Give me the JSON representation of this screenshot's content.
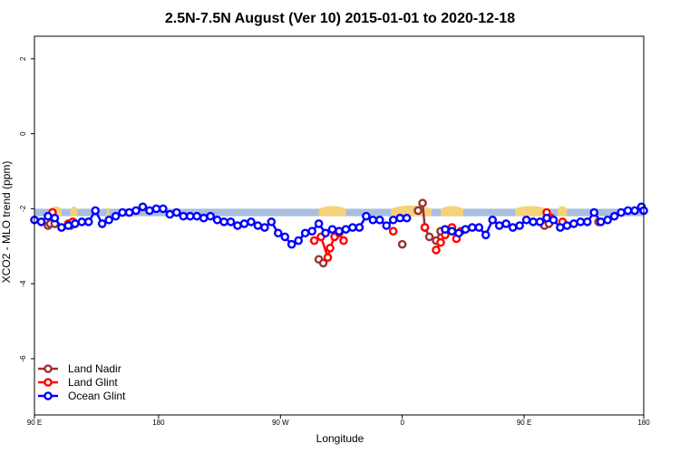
{
  "chart_data": {
    "type": "line",
    "title": "2.5N-7.5N August (Ver 10)   2015-01-01 to 2020-12-18",
    "xlabel": "Longitude",
    "ylabel": "XCO2 - MLO trend (ppm)",
    "xlim": [
      -90,
      180
    ],
    "ylim": [
      -7.5,
      2.6
    ],
    "x_ticks": [
      {
        "value": -90,
        "label": "90 E"
      },
      {
        "value": -35,
        "label": "180"
      },
      {
        "value": 19,
        "label": "90 W"
      },
      {
        "value": 73,
        "label": "0"
      },
      {
        "value": 127,
        "label": "90 E"
      },
      {
        "value": 180,
        "label": "180"
      }
    ],
    "y_ticks": [
      2,
      0,
      -2,
      -4,
      -6
    ],
    "band": {
      "ymin": -2.2,
      "ymax": -2.0,
      "color": "#a8bfdf",
      "land_color": "#f5d27a"
    },
    "land_bumps": [
      {
        "x0": -83,
        "x1": -78,
        "top": -1.95
      },
      {
        "x0": -74,
        "x1": -71,
        "top": -1.95
      },
      {
        "x0": -58,
        "x1": -57,
        "top": -2.0
      },
      {
        "x0": 36,
        "x1": 48,
        "top": -1.93
      },
      {
        "x0": 68,
        "x1": 86,
        "top": -1.9
      },
      {
        "x0": 90,
        "x1": 100,
        "top": -1.93
      },
      {
        "x0": 123,
        "x1": 137,
        "top": -1.93
      },
      {
        "x0": 142,
        "x1": 146,
        "top": -1.93
      }
    ],
    "series": [
      {
        "name": "Land Nadir",
        "color": "#993333",
        "segments": [
          [
            [
              -84,
              -2.45
            ],
            [
              -83,
              -2.4
            ],
            [
              -81,
              -2.4
            ]
          ],
          [
            [
              -74,
              -2.45
            ],
            [
              -73,
              -2.35
            ]
          ],
          [
            [
              36,
              -3.35
            ],
            [
              38,
              -3.45
            ]
          ],
          [
            [
              73,
              -2.95
            ]
          ],
          [
            [
              80,
              -2.05
            ],
            [
              82,
              -1.85
            ],
            [
              83,
              -2.5
            ],
            [
              85,
              -2.75
            ],
            [
              88,
              -2.85
            ],
            [
              90,
              -2.6
            ]
          ],
          [
            [
              136,
              -2.45
            ],
            [
              138,
              -2.4
            ]
          ],
          [
            [
              160,
              -2.35
            ]
          ]
        ]
      },
      {
        "name": "Land Glint",
        "color": "#ff0000",
        "segments": [
          [
            [
              -82,
              -2.1
            ]
          ],
          [
            [
              -75,
              -2.4
            ],
            [
              -73,
              -2.35
            ]
          ],
          [
            [
              34,
              -2.85
            ],
            [
              37,
              -2.75
            ],
            [
              40,
              -3.3
            ],
            [
              41,
              -3.05
            ],
            [
              43,
              -2.75
            ],
            [
              45,
              -2.65
            ],
            [
              47,
              -2.85
            ]
          ],
          [
            [
              69,
              -2.6
            ]
          ],
          [
            [
              83,
              -2.5
            ]
          ],
          [
            [
              88,
              -3.1
            ],
            [
              90,
              -2.9
            ],
            [
              92,
              -2.7
            ],
            [
              95,
              -2.5
            ],
            [
              97,
              -2.8
            ],
            [
              99,
              -2.6
            ]
          ],
          [
            [
              137,
              -2.1
            ],
            [
              139,
              -2.25
            ]
          ],
          [
            [
              144,
              -2.35
            ]
          ]
        ]
      },
      {
        "name": "Ocean Glint",
        "color": "#0000ff",
        "segments": [
          [
            [
              -90,
              -2.3
            ],
            [
              -87,
              -2.35
            ],
            [
              -84,
              -2.2
            ],
            [
              -81,
              -2.25
            ],
            [
              -78,
              -2.5
            ],
            [
              -75,
              -2.45
            ],
            [
              -72,
              -2.4
            ],
            [
              -69,
              -2.35
            ],
            [
              -66,
              -2.35
            ],
            [
              -63,
              -2.05
            ],
            [
              -60,
              -2.4
            ],
            [
              -57,
              -2.3
            ],
            [
              -54,
              -2.2
            ],
            [
              -51,
              -2.1
            ],
            [
              -48,
              -2.1
            ],
            [
              -45,
              -2.05
            ],
            [
              -42,
              -1.95
            ],
            [
              -39,
              -2.05
            ],
            [
              -36,
              -2.0
            ],
            [
              -33,
              -2.0
            ],
            [
              -30,
              -2.15
            ],
            [
              -27,
              -2.1
            ],
            [
              -24,
              -2.2
            ],
            [
              -21,
              -2.2
            ],
            [
              -18,
              -2.2
            ],
            [
              -15,
              -2.25
            ],
            [
              -12,
              -2.2
            ],
            [
              -9,
              -2.3
            ],
            [
              -6,
              -2.35
            ],
            [
              -3,
              -2.35
            ],
            [
              0,
              -2.45
            ],
            [
              3,
              -2.4
            ],
            [
              6,
              -2.35
            ],
            [
              9,
              -2.45
            ],
            [
              12,
              -2.5
            ],
            [
              15,
              -2.35
            ],
            [
              18,
              -2.65
            ],
            [
              21,
              -2.75
            ],
            [
              24,
              -2.95
            ],
            [
              27,
              -2.85
            ],
            [
              30,
              -2.65
            ],
            [
              33,
              -2.6
            ],
            [
              36,
              -2.4
            ],
            [
              39,
              -2.65
            ],
            [
              42,
              -2.55
            ],
            [
              45,
              -2.6
            ],
            [
              48,
              -2.55
            ],
            [
              51,
              -2.5
            ],
            [
              54,
              -2.5
            ],
            [
              57,
              -2.2
            ],
            [
              60,
              -2.3
            ],
            [
              63,
              -2.3
            ],
            [
              66,
              -2.45
            ],
            [
              69,
              -2.3
            ],
            [
              72,
              -2.25
            ],
            [
              75,
              -2.25
            ]
          ],
          [
            [
              92,
              -2.55
            ],
            [
              95,
              -2.6
            ],
            [
              98,
              -2.65
            ],
            [
              101,
              -2.55
            ],
            [
              104,
              -2.5
            ],
            [
              107,
              -2.5
            ],
            [
              110,
              -2.7
            ],
            [
              113,
              -2.3
            ],
            [
              116,
              -2.45
            ],
            [
              119,
              -2.4
            ],
            [
              122,
              -2.5
            ],
            [
              125,
              -2.45
            ],
            [
              128,
              -2.3
            ],
            [
              131,
              -2.35
            ],
            [
              134,
              -2.35
            ],
            [
              137,
              -2.25
            ],
            [
              140,
              -2.3
            ],
            [
              143,
              -2.5
            ],
            [
              146,
              -2.45
            ],
            [
              149,
              -2.4
            ],
            [
              152,
              -2.35
            ],
            [
              155,
              -2.35
            ],
            [
              158,
              -2.1
            ],
            [
              161,
              -2.35
            ],
            [
              164,
              -2.3
            ],
            [
              167,
              -2.2
            ],
            [
              170,
              -2.1
            ],
            [
              173,
              -2.05
            ],
            [
              176,
              -2.05
            ],
            [
              179,
              -1.95
            ],
            [
              180,
              -2.05
            ]
          ]
        ]
      }
    ],
    "legend": {
      "position": "bottom-left",
      "entries": [
        "Land Nadir",
        "Land Glint",
        "Ocean Glint"
      ]
    },
    "grid": false
  }
}
